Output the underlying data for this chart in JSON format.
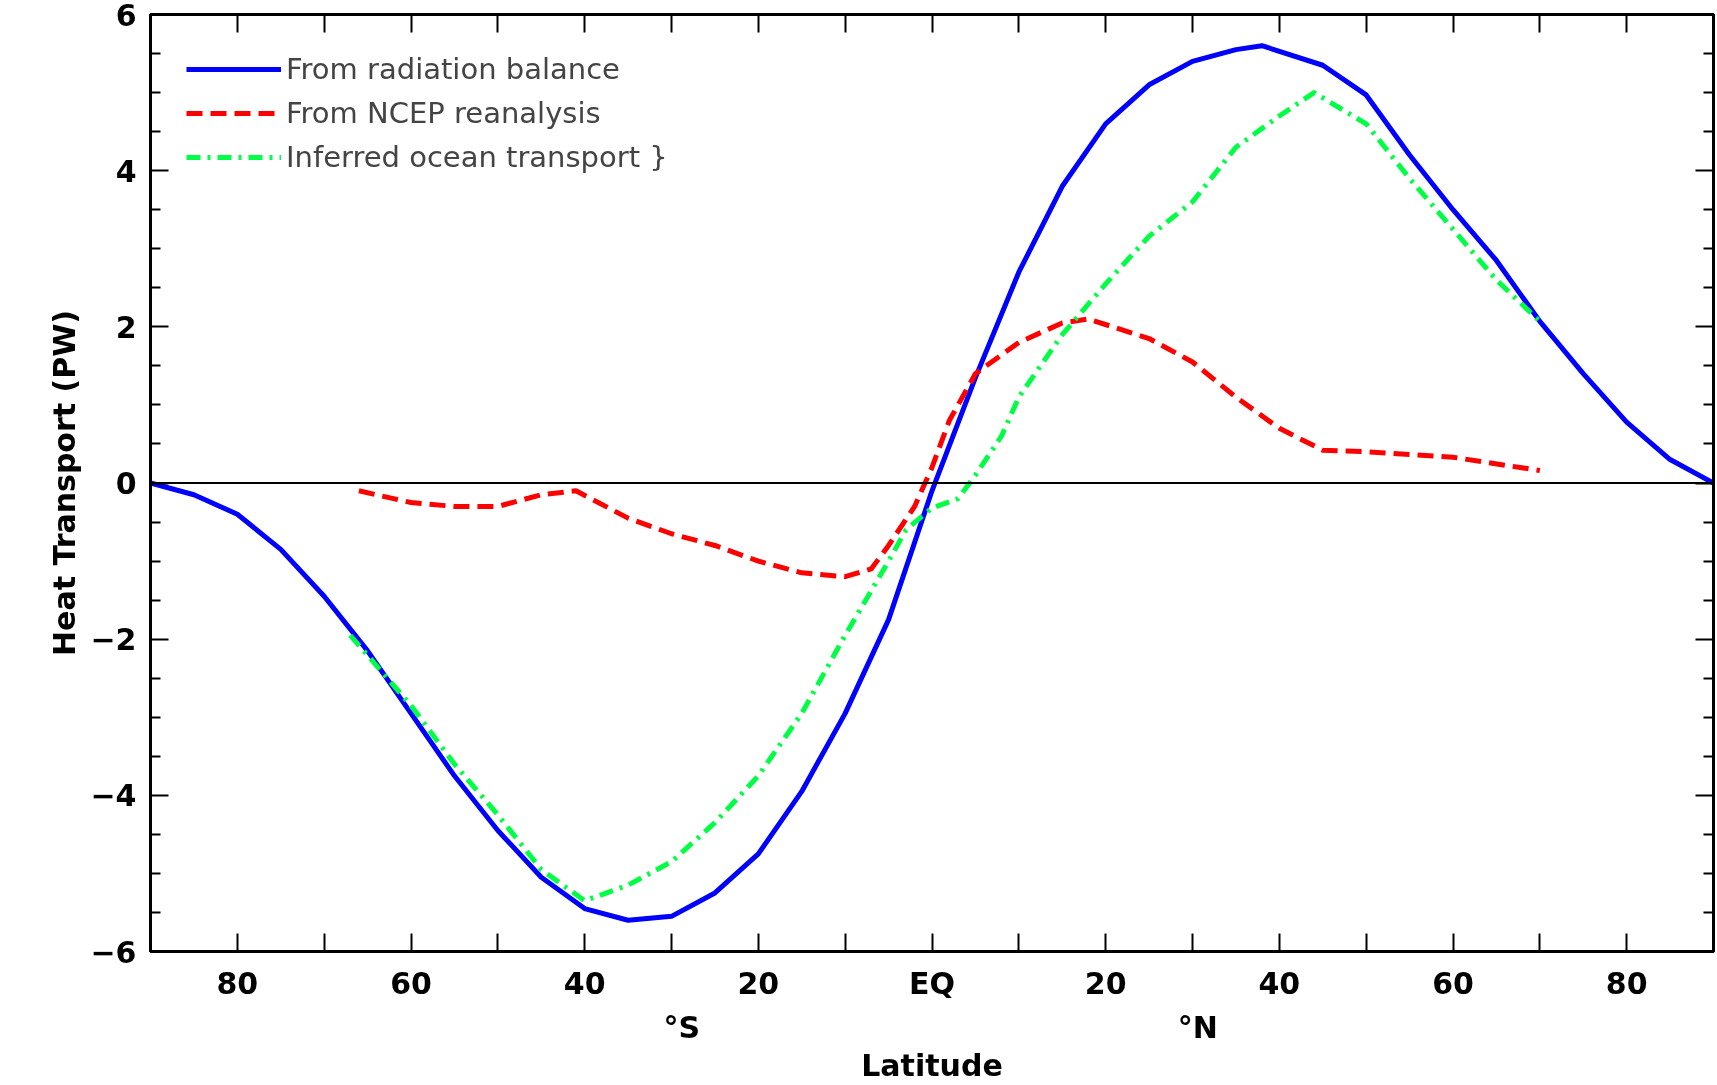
{
  "chart_data": {
    "type": "line",
    "xlabel": "Latitude",
    "ylabel": "Heat Transport (PW)",
    "xlim": [
      -90,
      90
    ],
    "ylim": [
      -6,
      6
    ],
    "xticks": [
      {
        "value": -80,
        "label": "80"
      },
      {
        "value": -60,
        "label": "60"
      },
      {
        "value": -40,
        "label": "40"
      },
      {
        "value": -20,
        "label": "20"
      },
      {
        "value": 0,
        "label": "EQ"
      },
      {
        "value": 20,
        "label": "20"
      },
      {
        "value": 40,
        "label": "40"
      },
      {
        "value": 60,
        "label": "60"
      },
      {
        "value": 80,
        "label": "80"
      }
    ],
    "yticks": [
      {
        "value": -6,
        "label": "−6"
      },
      {
        "value": -4,
        "label": "−4"
      },
      {
        "value": -2,
        "label": "−2"
      },
      0,
      2,
      4,
      6
    ],
    "grid": false,
    "legend": "top left",
    "marker": "none",
    "ref_lines": [
      {
        "axis": "y",
        "value": 0,
        "label": null,
        "color": "#000000",
        "line_style": "solid"
      }
    ],
    "annotations": [
      "°S",
      "°N"
    ],
    "series": [
      {
        "name": "From radiation balance",
        "color": "#0000ff",
        "line_style": "solid",
        "x": [
          -90,
          -85,
          -80,
          -75,
          -70,
          -65,
          -60,
          -55,
          -50,
          -45,
          -40,
          -35,
          -30,
          -25,
          -20,
          -15,
          -10,
          -5,
          0,
          5,
          10,
          15,
          20,
          25,
          30,
          35,
          38,
          45,
          50,
          55,
          60,
          65,
          70,
          75,
          80,
          85,
          90
        ],
        "values": [
          0,
          -0.15,
          -0.4,
          -0.85,
          -1.45,
          -2.15,
          -2.95,
          -3.75,
          -4.45,
          -5.05,
          -5.45,
          -5.6,
          -5.55,
          -5.25,
          -4.75,
          -3.95,
          -2.95,
          -1.75,
          -0.1,
          1.35,
          2.7,
          3.8,
          4.6,
          5.1,
          5.4,
          5.55,
          5.6,
          5.35,
          4.97,
          4.2,
          3.5,
          2.85,
          2.07,
          1.4,
          0.78,
          0.3,
          0
        ]
      },
      {
        "name": "From NCEP reanalysis",
        "color": "#ff0000",
        "line_style": "dashed",
        "x": [
          -66,
          -60,
          -55,
          -50,
          -45,
          -41,
          -35,
          -30,
          -25,
          -20,
          -15,
          -10,
          -7,
          -5,
          -2,
          0,
          2,
          5,
          10,
          15,
          18,
          25,
          30,
          35,
          40,
          45,
          50,
          60,
          70
        ],
        "values": [
          -0.1,
          -0.25,
          -0.3,
          -0.3,
          -0.15,
          -0.1,
          -0.45,
          -0.65,
          -0.8,
          -1.0,
          -1.15,
          -1.2,
          -1.1,
          -0.8,
          -0.3,
          0.2,
          0.8,
          1.4,
          1.8,
          2.05,
          2.1,
          1.85,
          1.55,
          1.1,
          0.7,
          0.42,
          0.4,
          0.33,
          0.16
        ]
      },
      {
        "name": "Inferred ocean transport }",
        "color": "#00ff44",
        "line_style": "dashdot",
        "x": [
          -67,
          -60,
          -55,
          -50,
          -45,
          -40,
          -35,
          -30,
          -25,
          -20,
          -15,
          -10,
          -5,
          -3,
          0,
          3,
          5,
          8,
          10,
          15,
          20,
          25,
          30,
          35,
          40,
          44,
          50,
          55,
          60,
          65,
          70
        ],
        "values": [
          -1.95,
          -2.85,
          -3.6,
          -4.25,
          -4.95,
          -5.35,
          -5.15,
          -4.85,
          -4.35,
          -3.75,
          -2.95,
          -1.95,
          -1.0,
          -0.6,
          -0.32,
          -0.2,
          0.1,
          0.6,
          1.1,
          1.9,
          2.55,
          3.16,
          3.6,
          4.3,
          4.7,
          5.0,
          4.6,
          3.9,
          3.25,
          2.6,
          2.07
        ]
      }
    ]
  }
}
